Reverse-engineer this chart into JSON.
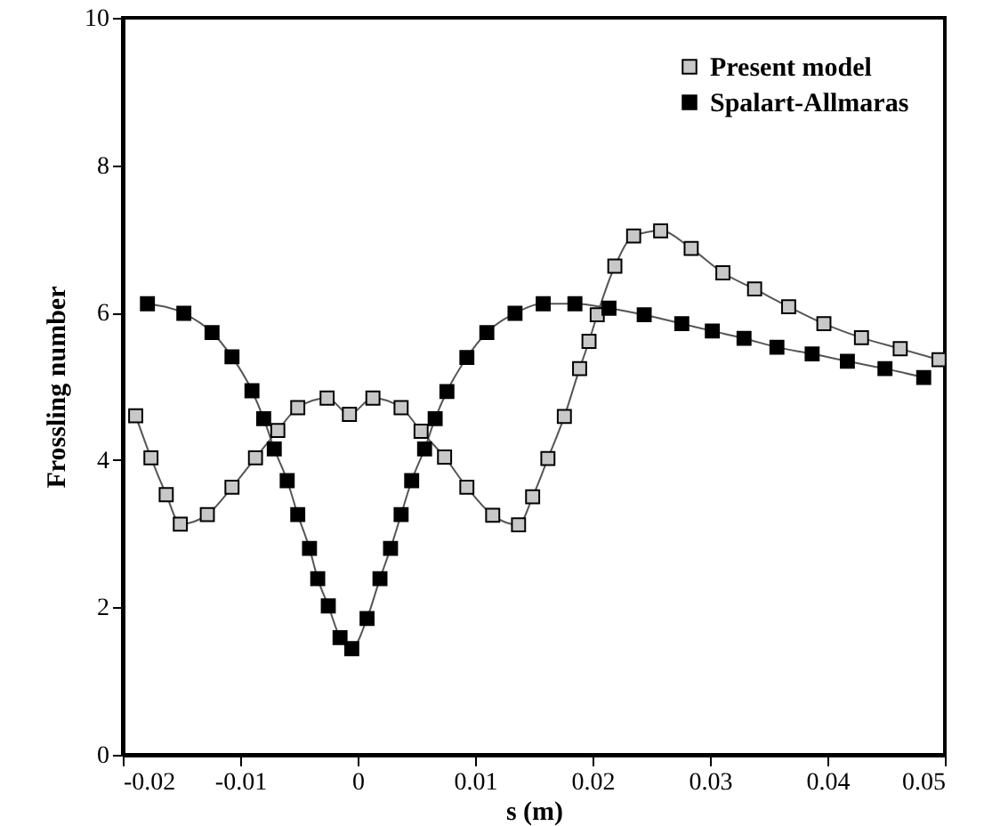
{
  "chart_data": {
    "type": "line",
    "xlabel": "s (m)",
    "ylabel": "Frossling number",
    "xlim": [
      -0.02,
      0.05
    ],
    "xticks": [
      -0.02,
      -0.01,
      0,
      0.01,
      0.02,
      0.03,
      0.04,
      0.05
    ],
    "ylim": [
      0,
      10
    ],
    "yticks": [
      0,
      2,
      4,
      6,
      8,
      10
    ],
    "grid": false,
    "legend": "top right",
    "marker": "square",
    "line_style": "solid",
    "series": [
      {
        "name": "Present model",
        "color": "#c8c8c8",
        "x": [
          -0.0189,
          -0.0176,
          -0.0163,
          -0.0151,
          -0.0128,
          -0.0107,
          -0.0087,
          -0.0068,
          -0.0051,
          -0.0026,
          -0.0007,
          0.0013,
          0.0037,
          0.0054,
          0.0074,
          0.0093,
          0.0115,
          0.0137,
          0.0149,
          0.0162,
          0.0176,
          0.0189,
          0.0197,
          0.0204,
          0.0219,
          0.0235,
          0.0258,
          0.0284,
          0.0311,
          0.0338,
          0.0367,
          0.0397,
          0.0429,
          0.0462,
          0.0495
        ],
        "values": [
          4.6,
          4.03,
          3.53,
          3.13,
          3.26,
          3.63,
          4.03,
          4.4,
          4.71,
          4.84,
          4.62,
          4.84,
          4.71,
          4.39,
          4.04,
          3.63,
          3.25,
          3.12,
          3.5,
          4.02,
          4.59,
          5.24,
          5.61,
          5.97,
          6.63,
          7.04,
          7.11,
          6.87,
          6.54,
          6.32,
          6.08,
          5.85,
          5.66,
          5.51,
          5.36
        ]
      },
      {
        "name": "Spalart-Allmaras",
        "color": "#000000",
        "x": [
          -0.0179,
          -0.0148,
          -0.0124,
          -0.0107,
          -0.009,
          -0.008,
          -0.0071,
          -0.006,
          -0.0051,
          -0.0041,
          -0.0034,
          -0.0025,
          -0.0015,
          -0.0005,
          0.0008,
          0.0019,
          0.0028,
          0.0037,
          0.0046,
          0.0057,
          0.0066,
          0.0076,
          0.0093,
          0.011,
          0.0134,
          0.0158,
          0.0185,
          0.0214,
          0.0244,
          0.0276,
          0.0302,
          0.0329,
          0.0357,
          0.0387,
          0.0417,
          0.0449,
          0.0482
        ],
        "values": [
          6.12,
          5.99,
          5.73,
          5.4,
          4.94,
          4.56,
          4.15,
          3.72,
          3.26,
          2.8,
          2.39,
          2.02,
          1.59,
          1.44,
          1.85,
          2.39,
          2.8,
          3.26,
          3.72,
          4.15,
          4.56,
          4.93,
          5.39,
          5.73,
          5.99,
          6.12,
          6.12,
          6.06,
          5.97,
          5.85,
          5.75,
          5.65,
          5.53,
          5.44,
          5.34,
          5.24,
          5.12
        ]
      }
    ]
  }
}
